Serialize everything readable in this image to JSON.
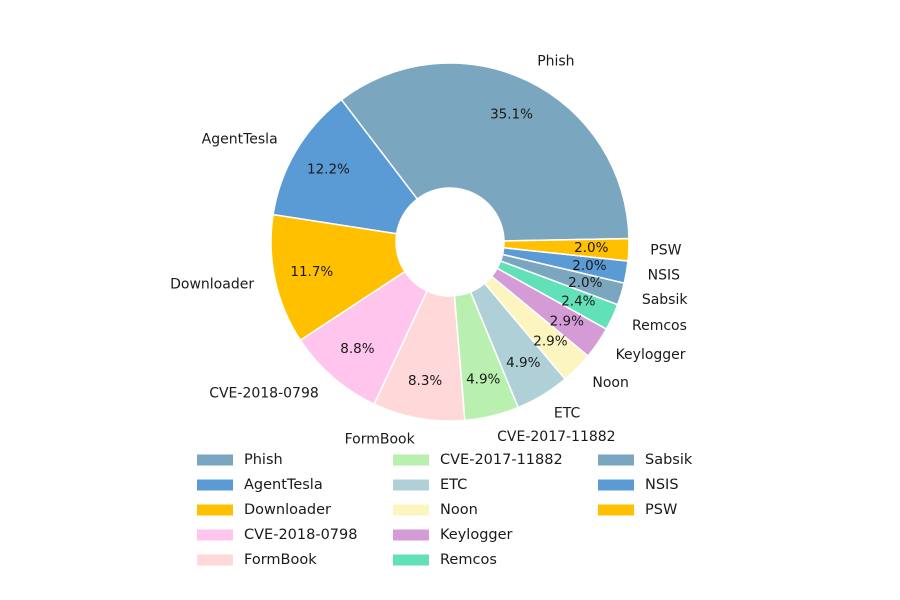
{
  "chart_data": {
    "type": "pie",
    "donut": true,
    "title": "",
    "legend_position": "bottom",
    "slices": [
      {
        "label": "Phish",
        "value": 35.1,
        "pct_text": "35.1%",
        "color": "#7AA6BF"
      },
      {
        "label": "AgentTesla",
        "value": 12.2,
        "pct_text": "12.2%",
        "color": "#5B9BD5"
      },
      {
        "label": "Downloader",
        "value": 11.7,
        "pct_text": "11.7%",
        "color": "#FFC000"
      },
      {
        "label": "CVE-2018-0798",
        "value": 8.8,
        "pct_text": "8.8%",
        "color": "#FFC5EC"
      },
      {
        "label": "FormBook",
        "value": 8.3,
        "pct_text": "8.3%",
        "color": "#FFD9D9"
      },
      {
        "label": "CVE-2017-11882",
        "value": 4.9,
        "pct_text": "4.9%",
        "color": "#B9F0B0"
      },
      {
        "label": "ETC",
        "value": 4.9,
        "pct_text": "4.9%",
        "color": "#B0D0D8"
      },
      {
        "label": "Noon",
        "value": 2.9,
        "pct_text": "2.9%",
        "color": "#FCF5C0"
      },
      {
        "label": "Keylogger",
        "value": 2.9,
        "pct_text": "2.9%",
        "color": "#D49BD6"
      },
      {
        "label": "Remcos",
        "value": 2.4,
        "pct_text": "2.4%",
        "color": "#62E0B8"
      },
      {
        "label": "Sabsik",
        "value": 2.0,
        "pct_text": "2.0%",
        "color": "#7AA6BF"
      },
      {
        "label": "NSIS",
        "value": 2.0,
        "pct_text": "2.0%",
        "color": "#5B9BD5"
      },
      {
        "label": "PSW",
        "value": 2.0,
        "pct_text": "2.0%",
        "color": "#FFC000"
      }
    ]
  }
}
